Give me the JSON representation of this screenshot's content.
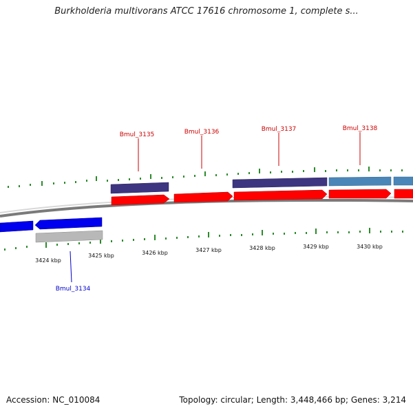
{
  "title": "Burkholderia multivorans ATCC 17616 chromosome 1, complete s...",
  "footer": {
    "accession": "Accession: NC_010084",
    "summary": "Topology: circular; Length: 3,448,466 bp; Genes: 3,214"
  },
  "colors": {
    "cds_forward": "#1a1aa8",
    "cds_reverse_blue": "#0000ee",
    "gene_red": "#ff0000",
    "gene_purple": "#3d3580",
    "gene_steelblue": "#4a86b8",
    "gene_gray": "#b8b8b8",
    "tick_green": "#2a8a2a",
    "label_red": "#cc0000",
    "label_blue": "#0000cc"
  },
  "ticks": [
    {
      "label": "3424 kbp"
    },
    {
      "label": "3425 kbp"
    },
    {
      "label": "3426 kbp"
    },
    {
      "label": "3427 kbp"
    },
    {
      "label": "3428 kbp"
    },
    {
      "label": "3429 kbp"
    },
    {
      "label": "3430 kbp"
    }
  ],
  "gene_labels": [
    {
      "name": "Bmul_3135"
    },
    {
      "name": "Bmul_3136"
    },
    {
      "name": "Bmul_3137"
    },
    {
      "name": "Bmul_3138"
    },
    {
      "name": "Bmul_3134"
    }
  ]
}
